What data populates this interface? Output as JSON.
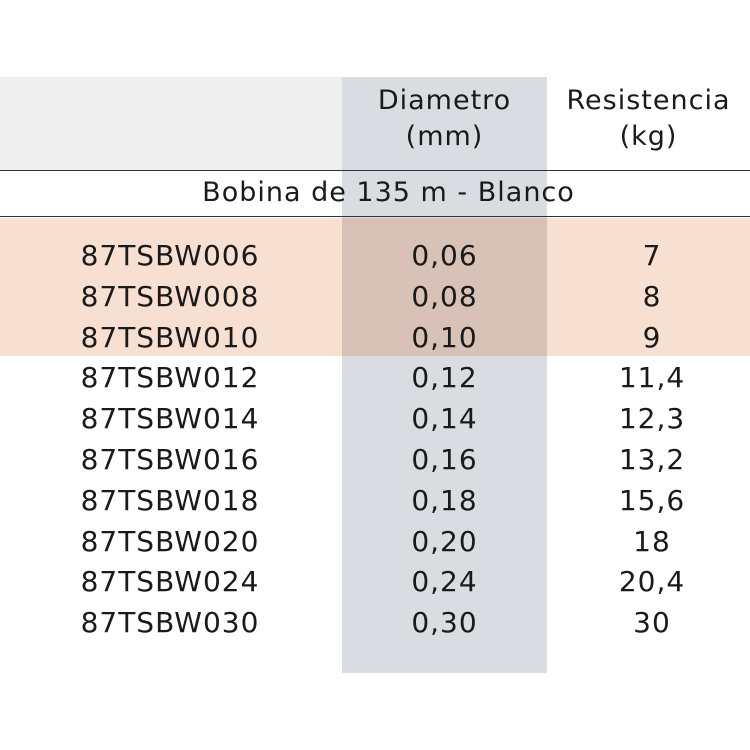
{
  "table": {
    "columns": [
      {},
      {
        "line1": "Diametro",
        "line2": "(mm)"
      },
      {
        "line1": "Resistencia",
        "line2": "(kg)"
      }
    ],
    "section": "Bobina de 135 m - Blanco",
    "rows": [
      [
        "87TSBW006",
        "0,06",
        "7"
      ],
      [
        "87TSBW008",
        "0,08",
        "8"
      ],
      [
        "87TSBW010",
        "0,10",
        "9"
      ],
      [
        "87TSBW012",
        "0,12",
        "11,4"
      ],
      [
        "87TSBW014",
        "0,14",
        "12,3"
      ],
      [
        "87TSBW016",
        "0,16",
        "13,2"
      ],
      [
        "87TSBW018",
        "0,18",
        "15,6"
      ],
      [
        "87TSBW020",
        "0,20",
        "18"
      ],
      [
        "87TSBW024",
        "0,24",
        "20,4"
      ],
      [
        "87TSBW030",
        "0,30",
        "30"
      ]
    ]
  }
}
